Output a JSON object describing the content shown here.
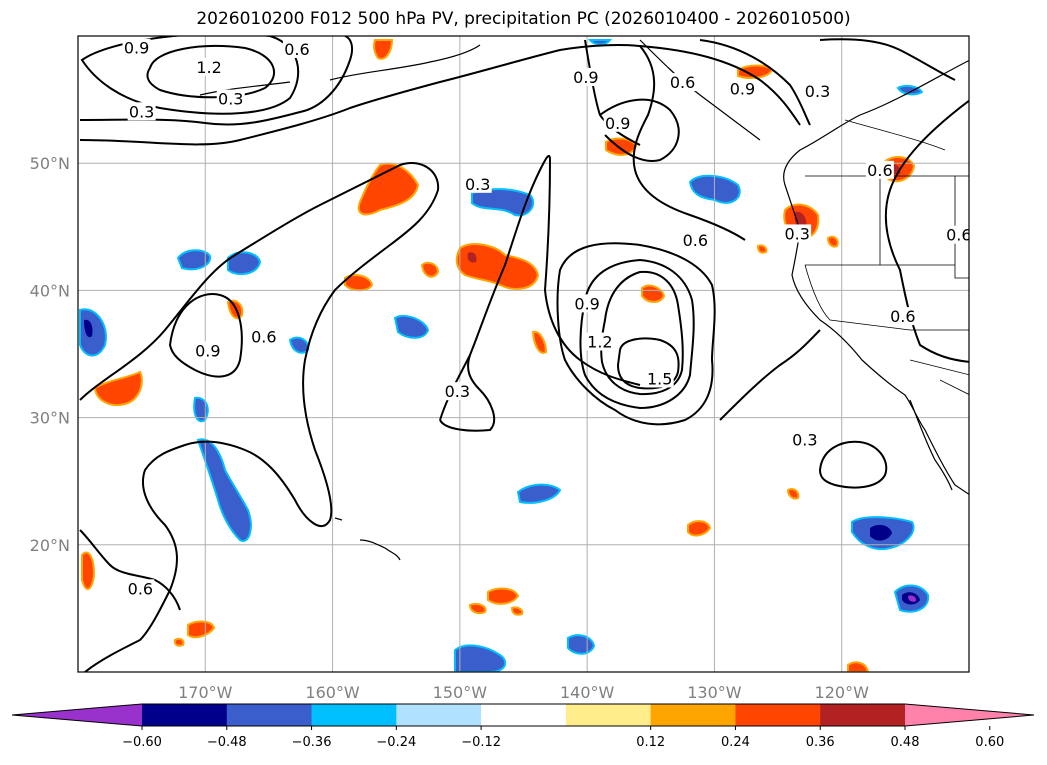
{
  "title": "2026010200 F012 500 hPa PV, precipitation PC (2026010400 - 2026010500)",
  "map": {
    "projection": "PlateCarree",
    "lon_range": [
      -180,
      -110
    ],
    "lat_range": [
      10,
      60
    ],
    "gridlines": true,
    "lon_ticks": [
      {
        "lon": -170,
        "label": "170°W"
      },
      {
        "lon": -160,
        "label": "160°W"
      },
      {
        "lon": -150,
        "label": "150°W"
      },
      {
        "lon": -140,
        "label": "140°W"
      },
      {
        "lon": -130,
        "label": "130°W"
      },
      {
        "lon": -120,
        "label": "120°W"
      }
    ],
    "lat_ticks": [
      {
        "lat": 20,
        "label": "20°N"
      },
      {
        "lat": 30,
        "label": "30°N"
      },
      {
        "lat": 40,
        "label": "40°N"
      },
      {
        "lat": 50,
        "label": "50°N"
      }
    ],
    "pv_contour_labels": [
      {
        "text": "0.9",
        "lon": -175.4,
        "lat": 59.0
      },
      {
        "text": "1.2",
        "lon": -169.7,
        "lat": 57.5
      },
      {
        "text": "0.6",
        "lon": -162.8,
        "lat": 58.9
      },
      {
        "text": "0.3",
        "lon": -168.0,
        "lat": 55.0
      },
      {
        "text": "0.3",
        "lon": -175.0,
        "lat": 54.0
      },
      {
        "text": "0.9",
        "lon": -140.1,
        "lat": 56.7
      },
      {
        "text": "0.6",
        "lon": -132.5,
        "lat": 56.3
      },
      {
        "text": "0.9",
        "lon": -127.8,
        "lat": 55.8
      },
      {
        "text": "0.3",
        "lon": -121.9,
        "lat": 55.6
      },
      {
        "text": "0.9",
        "lon": -137.6,
        "lat": 53.1
      },
      {
        "text": "0.6",
        "lon": -117.0,
        "lat": 49.4
      },
      {
        "text": "0.3",
        "lon": -148.6,
        "lat": 48.3
      },
      {
        "text": "0.6",
        "lon": -131.5,
        "lat": 43.9
      },
      {
        "text": "0.3",
        "lon": -123.5,
        "lat": 44.4
      },
      {
        "text": "0.6",
        "lon": -110.8,
        "lat": 44.3
      },
      {
        "text": "0.9",
        "lon": -140.0,
        "lat": 38.9
      },
      {
        "text": "1.2",
        "lon": -139.0,
        "lat": 35.9
      },
      {
        "text": "1.5",
        "lon": -134.3,
        "lat": 33.0
      },
      {
        "text": "0.9",
        "lon": -169.8,
        "lat": 35.2
      },
      {
        "text": "0.6",
        "lon": -165.4,
        "lat": 36.3
      },
      {
        "text": "0.6",
        "lon": -115.2,
        "lat": 37.9
      },
      {
        "text": "0.3",
        "lon": -150.2,
        "lat": 32.0
      },
      {
        "text": "0.3",
        "lon": -122.9,
        "lat": 28.2
      },
      {
        "text": "0.6",
        "lon": -175.1,
        "lat": 16.5
      }
    ],
    "precip_colors": {
      "neg": [
        "#9932cc",
        "#00008b",
        "#3a5fcd",
        "#00bfff",
        "#b0e2ff"
      ],
      "pos": [
        "#ffec8b",
        "#ffa500",
        "#ff4500",
        "#b22222",
        "#ff82ab"
      ]
    }
  },
  "colorbar": {
    "ticks": [
      "−0.60",
      "−0.48",
      "−0.36",
      "−0.24",
      "−0.12",
      "0.12",
      "0.24",
      "0.36",
      "0.48",
      "0.60"
    ],
    "colors": [
      "#9932cc",
      "#00008b",
      "#3a5fcd",
      "#00bfff",
      "#b0e2ff",
      "#ffffff",
      "#ffec8b",
      "#ffa500",
      "#ff4500",
      "#b22222",
      "#ff82ab"
    ]
  }
}
